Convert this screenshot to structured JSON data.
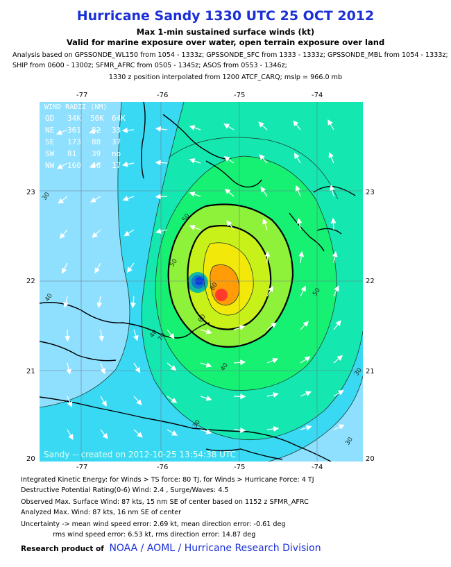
{
  "header": {
    "title": "Hurricane Sandy 1330 UTC 25 OCT 2012",
    "subtitle1": "Max 1-min sustained surface winds (kt)",
    "subtitle2": "Valid for marine exposure over water, open terrain exposure over land",
    "analysis_line1": "Analysis based on GPSSONDE_WL150 from 1054 - 1333z; GPSSONDE_SFC from 1333 - 1333z; GPSSONDE_MBL from 1054 - 1333z;",
    "analysis_line2": "SHIP from 0600 - 1300z; SFMR_AFRC from 0505 - 1345z; ASOS from 0553 - 1346z;",
    "position_note": "1330 z position interpolated from 1200 ATCF_CARQ; mslp = 966.0 mb"
  },
  "map": {
    "lon_ticks": [
      "-77",
      "-76",
      "-75",
      "-74"
    ],
    "lat_ticks": [
      "23",
      "22",
      "21",
      "20"
    ],
    "wind_radii": {
      "title": "WIND RADII (NM)",
      "header": [
        "QD",
        "34K",
        "50K",
        "64K"
      ],
      "rows": [
        [
          "NE",
          "361",
          "82",
          "33"
        ],
        [
          "SE",
          "173",
          "88",
          "37"
        ],
        [
          "SW",
          "81",
          "39",
          "no"
        ],
        [
          "NW",
          "160",
          "46",
          "17"
        ]
      ]
    },
    "contour_labels": [
      "30",
      "40",
      "50",
      "60",
      "70",
      "80",
      "30",
      "40",
      "50",
      "50",
      "40",
      "30",
      "30"
    ],
    "credit": "Sandy -- created on 2012-10-25 13:54:38 UTC",
    "colors": {
      "ocean_30": "#8fe0ff",
      "band_34": "#39d9f4",
      "band_40": "#14e7b0",
      "band_50": "#16f073",
      "band_60": "#8ff23a",
      "band_64": "#c8f019",
      "band_70": "#f2e90a",
      "band_80": "#ff9c07",
      "band_85": "#ff3b2a",
      "eye": "#0a3de0"
    }
  },
  "footer": {
    "ike": "Integrated Kinetic Energy: for Winds > TS force: 80 TJ, for Winds > Hurricane Force: 4 TJ",
    "dpr": "Destructive Potential Rating(0-6)  Wind: 2.4 , Surge/Waves: 4.5",
    "obs_max": "Observed Max. Surface Wind: 87 kts, 15 nm SE of center based on 1152 z SFMR_AFRC",
    "ana_max": "Analyzed Max. Wind: 87 kts, 16 nm  SE of center",
    "unc1": "Uncertainty -> mean wind speed error: 2.69 kt, mean direction error:  -0.61 deg",
    "unc2": "rms wind speed error: 6.53 kt, rms direction error: 14.87 deg",
    "research_prefix": "Research product of",
    "research_org": "NOAA  /  AOML  /  Hurricane Research Division"
  }
}
